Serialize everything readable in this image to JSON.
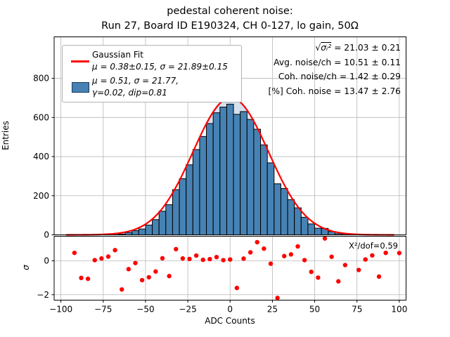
{
  "title": {
    "line1": "pedestal coherent noise:",
    "line2": "Run 27, Board ID E190324, CH 0-127, lo gain, 50Ω"
  },
  "axes": {
    "xlabel": "ADC Counts",
    "ylabel_main": "Entries",
    "ylabel_resid": "σ"
  },
  "legend": {
    "fit_label": "Gaussian Fit",
    "fit_params": "μ = 0.38±0.15, σ = 21.89±0.15",
    "hist_params_line1": "μ = 0.51, σ = 21.77,",
    "hist_params_line2": "γ=0.02, dip=0.81"
  },
  "stats": {
    "line1_radical": "√",
    "line1_radicand": "σᵢ²",
    "line1_rest": " = 21.03 ± 0.21",
    "line2": "Avg. noise/ch = 10.51 ± 0.11",
    "line3": "Coh. noise/ch = 1.42 ± 0.29",
    "line4": "[%] Coh. noise = 13.47  ± 2.76"
  },
  "residual_panel": {
    "chi2_label": "X²/dof=0.59"
  },
  "chart_data": {
    "type": "bar",
    "subtype": "histogram_with_gaussian_fit_and_pull_panel",
    "title": "pedestal coherent noise: Run 27, Board ID E190324, CH 0-127, lo gain, 50Ω",
    "xlabel": "ADC Counts",
    "ylabel": "Entries",
    "residual_ylabel": "σ",
    "grid": true,
    "legend_position": "upper left",
    "bin_width": 4,
    "bin_centers": [
      -92,
      -88,
      -84,
      -80,
      -76,
      -72,
      -68,
      -64,
      -60,
      -56,
      -52,
      -48,
      -44,
      -40,
      -36,
      -32,
      -28,
      -24,
      -20,
      -16,
      -12,
      -8,
      -4,
      0,
      4,
      8,
      12,
      16,
      20,
      24,
      28,
      32,
      36,
      40,
      44,
      48,
      52,
      56,
      60,
      64,
      68,
      72,
      76,
      80,
      84,
      88,
      92
    ],
    "counts": [
      1,
      0,
      0,
      1,
      2,
      3,
      6,
      4,
      12,
      22,
      30,
      50,
      78,
      121,
      154,
      231,
      287,
      358,
      436,
      503,
      569,
      624,
      653,
      668,
      616,
      630,
      590,
      540,
      460,
      368,
      261,
      237,
      180,
      138,
      90,
      56,
      34,
      33,
      17,
      6,
      5,
      3,
      1,
      1,
      1,
      0,
      1
    ],
    "fit_curve": {
      "label": "Gaussian Fit",
      "mu": 0.38,
      "mu_err": 0.15,
      "sigma": 21.89,
      "sigma_err": 0.15,
      "peak": 700,
      "draw_sigma": 22.3,
      "x_range": [
        -97,
        97
      ]
    },
    "alt_fit": {
      "mu": 0.51,
      "sigma": 21.77,
      "gamma": 0.02,
      "dip": 0.81,
      "peak": 712,
      "draw_sigma": 22.0,
      "x_range": [
        -14,
        11
      ]
    },
    "residuals": {
      "x": [
        -92,
        -88,
        -84,
        -80,
        -76,
        -72,
        -68,
        -64,
        -60,
        -56,
        -52,
        -48,
        -44,
        -40,
        -36,
        -32,
        -28,
        -24,
        -20,
        -16,
        -12,
        -8,
        -4,
        0,
        4,
        8,
        12,
        16,
        20,
        24,
        28,
        32,
        36,
        40,
        44,
        48,
        52,
        56,
        60,
        64,
        68,
        76,
        80,
        84,
        88,
        92,
        100
      ],
      "sigma": [
        0.47,
        -1.01,
        -1.06,
        0.04,
        0.14,
        0.25,
        0.63,
        -1.69,
        -0.49,
        -0.13,
        -1.14,
        -0.97,
        -0.63,
        0.15,
        -0.9,
        0.69,
        0.14,
        0.11,
        0.31,
        0.06,
        0.1,
        0.22,
        0.04,
        0.08,
        -1.6,
        0.13,
        0.5,
        1.1,
        0.72,
        -0.17,
        -2.19,
        0.28,
        0.38,
        0.85,
        0.04,
        -0.65,
        -0.99,
        1.32,
        0.24,
        -1.21,
        -0.25,
        -0.54,
        0.08,
        0.32,
        -0.93,
        0.47,
        0.46
      ]
    },
    "chi2_per_dof": 0.59,
    "stats_box": {
      "sqrt_mean_sigma2": "21.03 ± 0.21",
      "avg_noise_per_ch": "10.51 ± 0.11",
      "coh_noise_per_ch": "1.42 ± 0.29",
      "pct_coh_noise": "13.47 ± 2.76"
    },
    "xlim": [
      -104,
      104
    ],
    "ylim": [
      0,
      1012
    ],
    "residual_ylim": [
      -2.32,
      1.45
    ],
    "xticks": [
      -100,
      -75,
      -50,
      -25,
      0,
      25,
      50,
      75,
      100
    ],
    "yticks": [
      0,
      200,
      400,
      600,
      800
    ],
    "residual_yticks": [
      0,
      -2
    ],
    "colors": {
      "bar_fill": "#4682b4",
      "bar_edge": "#000000",
      "fit_line": "#ff0000",
      "residual_dot": "#ff0000",
      "grid": "#b8b8b8",
      "alt_fit_fill": "#b9cde4",
      "spine": "#000000"
    }
  }
}
